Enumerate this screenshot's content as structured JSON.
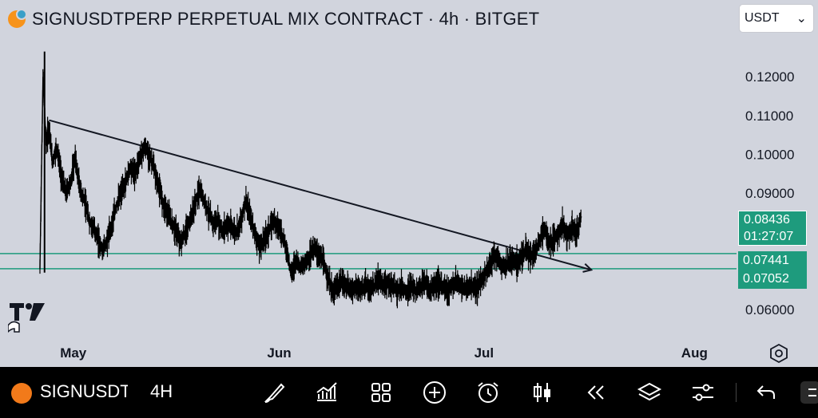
{
  "header": {
    "title": "SIGNUSDTPERP PERPETUAL MIX CONTRACT · 4h · BITGET",
    "currency": "USDT"
  },
  "price_badge": {
    "price": "0.08436",
    "countdown": "01:27:07"
  },
  "level_badges": [
    "0.07441",
    "0.07052"
  ],
  "toolbar": {
    "symbol": "SIGNUSDT",
    "timeframe": "4H",
    "icons": [
      "brush-icon",
      "indicators-icon",
      "layout-grid-icon",
      "add-icon",
      "alarm-icon",
      "candles-icon",
      "replay-icon",
      "layers-icon",
      "settings-sliders-icon",
      "undo-icon"
    ]
  },
  "colors": {
    "background": "#d1d4dd",
    "line": "#1e9b7d",
    "candle": "#000000",
    "toolbar": "#000000"
  },
  "chart_data": {
    "type": "line",
    "y_ticks": [
      "0.12000",
      "0.11000",
      "0.10000",
      "0.09000",
      "0.06000"
    ],
    "x_ticks": [
      "May",
      "Jun",
      "Jul",
      "Aug"
    ],
    "ylim": [
      0.0565,
      0.1295
    ],
    "x_tick_positions": [
      0.045,
      0.315,
      0.585,
      0.855
    ],
    "price_series": [
      [
        0.0,
        0.0705
      ],
      [
        0.004,
        0.12
      ],
      [
        0.008,
        0.103
      ],
      [
        0.012,
        0.107
      ],
      [
        0.016,
        0.098
      ],
      [
        0.022,
        0.102
      ],
      [
        0.028,
        0.094
      ],
      [
        0.034,
        0.09
      ],
      [
        0.04,
        0.093
      ],
      [
        0.046,
        0.099
      ],
      [
        0.052,
        0.091
      ],
      [
        0.058,
        0.088
      ],
      [
        0.064,
        0.083
      ],
      [
        0.07,
        0.081
      ],
      [
        0.076,
        0.078
      ],
      [
        0.082,
        0.075
      ],
      [
        0.088,
        0.078
      ],
      [
        0.094,
        0.082
      ],
      [
        0.1,
        0.087
      ],
      [
        0.106,
        0.09
      ],
      [
        0.112,
        0.093
      ],
      [
        0.118,
        0.097
      ],
      [
        0.124,
        0.095
      ],
      [
        0.13,
        0.099
      ],
      [
        0.136,
        0.102
      ],
      [
        0.142,
        0.1
      ],
      [
        0.148,
        0.097
      ],
      [
        0.154,
        0.092
      ],
      [
        0.16,
        0.088
      ],
      [
        0.166,
        0.085
      ],
      [
        0.172,
        0.082
      ],
      [
        0.178,
        0.08
      ],
      [
        0.184,
        0.077
      ],
      [
        0.19,
        0.08
      ],
      [
        0.196,
        0.083
      ],
      [
        0.202,
        0.087
      ],
      [
        0.208,
        0.091
      ],
      [
        0.214,
        0.088
      ],
      [
        0.22,
        0.085
      ],
      [
        0.226,
        0.082
      ],
      [
        0.232,
        0.083
      ],
      [
        0.238,
        0.08
      ],
      [
        0.244,
        0.082
      ],
      [
        0.25,
        0.081
      ],
      [
        0.256,
        0.08
      ],
      [
        0.262,
        0.083
      ],
      [
        0.268,
        0.088
      ],
      [
        0.274,
        0.084
      ],
      [
        0.28,
        0.08
      ],
      [
        0.286,
        0.076
      ],
      [
        0.292,
        0.078
      ],
      [
        0.298,
        0.08
      ],
      [
        0.304,
        0.083
      ],
      [
        0.31,
        0.082
      ],
      [
        0.316,
        0.079
      ],
      [
        0.322,
        0.075
      ],
      [
        0.328,
        0.069
      ],
      [
        0.334,
        0.073
      ],
      [
        0.34,
        0.071
      ],
      [
        0.346,
        0.072
      ],
      [
        0.352,
        0.074
      ],
      [
        0.358,
        0.076
      ],
      [
        0.364,
        0.074
      ],
      [
        0.37,
        0.072
      ],
      [
        0.376,
        0.068
      ],
      [
        0.382,
        0.064
      ],
      [
        0.388,
        0.066
      ],
      [
        0.394,
        0.067
      ],
      [
        0.4,
        0.066
      ],
      [
        0.406,
        0.065
      ],
      [
        0.412,
        0.066
      ],
      [
        0.418,
        0.065
      ],
      [
        0.424,
        0.066
      ],
      [
        0.43,
        0.065
      ],
      [
        0.436,
        0.066
      ],
      [
        0.442,
        0.068
      ],
      [
        0.448,
        0.066
      ],
      [
        0.454,
        0.067
      ],
      [
        0.46,
        0.066
      ],
      [
        0.466,
        0.065
      ],
      [
        0.472,
        0.066
      ],
      [
        0.478,
        0.064
      ],
      [
        0.484,
        0.066
      ],
      [
        0.49,
        0.065
      ],
      [
        0.496,
        0.066
      ],
      [
        0.502,
        0.067
      ],
      [
        0.508,
        0.065
      ],
      [
        0.514,
        0.066
      ],
      [
        0.52,
        0.067
      ],
      [
        0.526,
        0.066
      ],
      [
        0.532,
        0.065
      ],
      [
        0.538,
        0.066
      ],
      [
        0.544,
        0.067
      ],
      [
        0.55,
        0.066
      ],
      [
        0.556,
        0.065
      ],
      [
        0.562,
        0.066
      ],
      [
        0.568,
        0.065
      ],
      [
        0.574,
        0.067
      ],
      [
        0.58,
        0.069
      ],
      [
        0.586,
        0.071
      ],
      [
        0.592,
        0.074
      ],
      [
        0.598,
        0.073
      ],
      [
        0.604,
        0.071
      ],
      [
        0.61,
        0.072
      ],
      [
        0.616,
        0.073
      ],
      [
        0.622,
        0.072
      ],
      [
        0.628,
        0.074
      ],
      [
        0.634,
        0.075
      ],
      [
        0.64,
        0.074
      ],
      [
        0.646,
        0.075
      ],
      [
        0.652,
        0.078
      ],
      [
        0.658,
        0.081
      ],
      [
        0.664,
        0.077
      ],
      [
        0.67,
        0.078
      ],
      [
        0.676,
        0.08
      ],
      [
        0.682,
        0.082
      ],
      [
        0.688,
        0.079
      ],
      [
        0.694,
        0.081
      ],
      [
        0.7,
        0.08
      ],
      [
        0.706,
        0.084
      ]
    ]
  }
}
